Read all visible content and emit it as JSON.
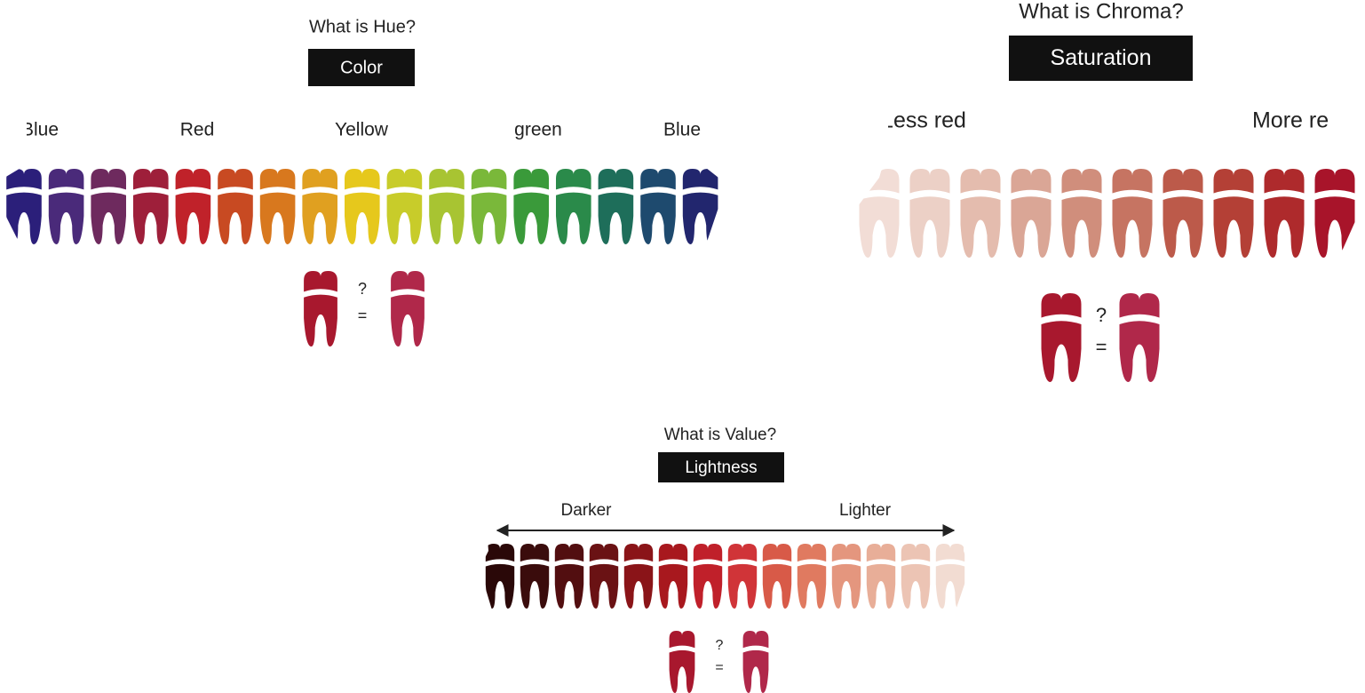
{
  "panels": [
    {
      "question": "What is Hue?",
      "label": "Color",
      "scale_labels": [
        "Blue",
        "Red",
        "Yellow",
        "green",
        "Blue"
      ],
      "compare_symbols": [
        "?",
        "="
      ],
      "teeth_colors": [
        "#2b1f7a",
        "#4a2a7a",
        "#6e2a5e",
        "#9e1f3a",
        "#c0222a",
        "#c84a22",
        "#d8781e",
        "#e0a020",
        "#e6c81c",
        "#c8cc2a",
        "#a8c432",
        "#7ab83a",
        "#3a9a3a",
        "#2a8a4a",
        "#1e6e5a",
        "#1e4a6e",
        "#22266e"
      ],
      "compare_colors": [
        "#a8182e",
        "#b0284a"
      ]
    },
    {
      "question": "What is Chroma?",
      "label": "Saturation",
      "scale_labels": [
        "Less red",
        "More red"
      ],
      "compare_symbols": [
        "?",
        "="
      ],
      "teeth_colors": [
        "#f2ddd6",
        "#ecd0c6",
        "#e4bcae",
        "#daa696",
        "#d08e7c",
        "#c67462",
        "#bc5a4a",
        "#b44036",
        "#ae2a2c",
        "#a8142a"
      ],
      "compare_colors": [
        "#a8182e",
        "#b0284a"
      ]
    },
    {
      "question": "What is Value?",
      "label": "Lightness",
      "scale_labels": [
        "Darker",
        "Lighter"
      ],
      "compare_symbols": [
        "?",
        "="
      ],
      "teeth_colors": [
        "#2a0808",
        "#3a0c0c",
        "#520e10",
        "#6a1214",
        "#8a1418",
        "#a8181e",
        "#c0202a",
        "#d03438",
        "#d85a48",
        "#e07a60",
        "#e4967e",
        "#e8ae98",
        "#ecc4b4",
        "#f2dcd2"
      ],
      "compare_colors": [
        "#a8182e",
        "#b0284a"
      ]
    }
  ]
}
